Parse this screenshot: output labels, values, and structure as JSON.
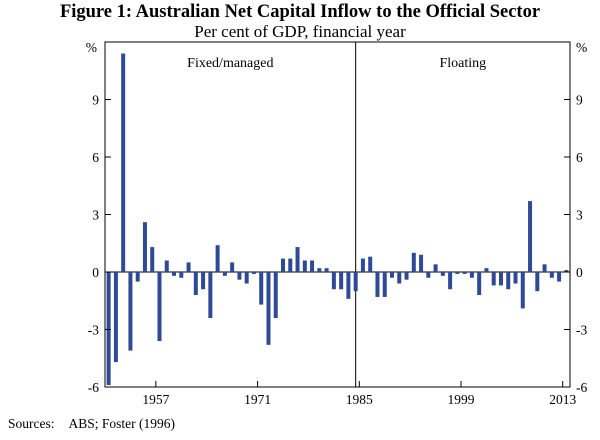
{
  "title": "Figure 1: Australian Net Capital Inflow to the Official Sector",
  "subtitle": "Per cent of GDP, financial year",
  "source": {
    "label": "Sources:",
    "text": "ABS; Foster (1996)"
  },
  "colors": {
    "bar": "#2e4a96",
    "axis": "#000000"
  },
  "chart_data": {
    "type": "bar",
    "title": "Figure 1: Australian Net Capital Inflow to the Official Sector",
    "subtitle": "Per cent of GDP, financial year",
    "unit_left": "%",
    "unit_right": "%",
    "ylim": [
      -6,
      12
    ],
    "yticks": [
      -6,
      -3,
      0,
      3,
      6,
      9
    ],
    "ytick_labels": [
      "-6",
      "-3",
      "0",
      "3",
      "6",
      "9"
    ],
    "x_range": [
      1950,
      2014
    ],
    "xticks": [
      1957,
      1971,
      1985,
      1999,
      2013
    ],
    "regime_split": 1984.5,
    "regime_labels": [
      "Fixed/managed",
      "Floating"
    ],
    "grid": false,
    "x": [
      1951,
      1952,
      1953,
      1954,
      1955,
      1956,
      1957,
      1958,
      1959,
      1960,
      1961,
      1962,
      1963,
      1964,
      1965,
      1966,
      1967,
      1968,
      1969,
      1970,
      1971,
      1972,
      1973,
      1974,
      1975,
      1976,
      1977,
      1978,
      1979,
      1980,
      1981,
      1982,
      1983,
      1984,
      1985,
      1986,
      1987,
      1988,
      1989,
      1990,
      1991,
      1992,
      1993,
      1994,
      1995,
      1996,
      1997,
      1998,
      1999,
      2000,
      2001,
      2002,
      2003,
      2004,
      2005,
      2006,
      2007,
      2008,
      2009,
      2010,
      2011,
      2012,
      2013,
      2014
    ],
    "values": [
      -5.9,
      -4.7,
      11.4,
      -4.1,
      -0.5,
      2.6,
      1.3,
      -3.6,
      0.6,
      -0.2,
      -0.3,
      0.5,
      -1.2,
      -0.9,
      -2.4,
      1.4,
      -0.2,
      0.5,
      -0.4,
      -0.6,
      -0.1,
      -1.7,
      -3.8,
      -2.4,
      0.7,
      0.7,
      1.3,
      0.6,
      0.6,
      0.2,
      0.2,
      -0.9,
      -0.9,
      -1.4,
      -1.0,
      0.7,
      0.8,
      -1.3,
      -1.3,
      -0.3,
      -0.6,
      -0.4,
      1.0,
      0.9,
      -0.3,
      0.4,
      -0.2,
      -0.9,
      -0.1,
      -0.1,
      -0.3,
      -1.2,
      0.2,
      -0.7,
      -0.7,
      -0.9,
      -0.6,
      -1.9,
      3.7,
      -1.0,
      0.4,
      -0.3,
      -0.5,
      0.1
    ]
  }
}
